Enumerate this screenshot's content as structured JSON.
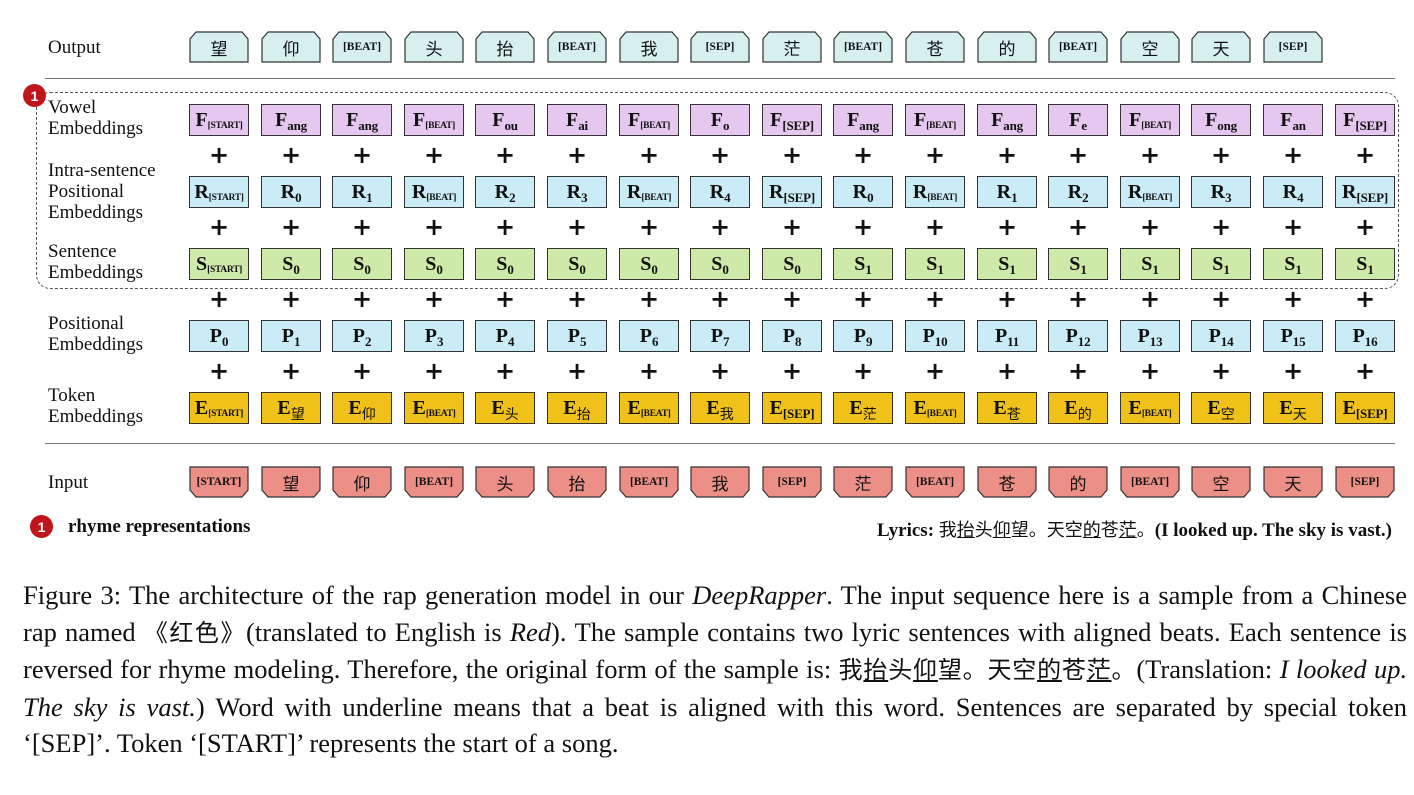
{
  "labels": {
    "output": "Output",
    "vowel_1": "Vowel",
    "vowel_2": "Embeddings",
    "intra_1": "Intra-sentence",
    "intra_2": "Positional",
    "intra_3": "Embeddings",
    "sentence_1": "Sentence",
    "sentence_2": "Embeddings",
    "positional_1": "Positional",
    "positional_2": "Embeddings",
    "token_1": "Token",
    "token_2": "Embeddings",
    "input": "Input"
  },
  "badge_number": "1",
  "legend_label": "rhyme representations",
  "plus_sign": "+",
  "output_tokens": [
    "望",
    "仰",
    "[BEAT]",
    "头",
    "抬",
    "[BEAT]",
    "我",
    "[SEP]",
    "茫",
    "[BEAT]",
    "苍",
    "的",
    "[BEAT]",
    "空",
    "天",
    "[SEP]"
  ],
  "input_tokens": [
    "[START]",
    "望",
    "仰",
    "[BEAT]",
    "头",
    "抬",
    "[BEAT]",
    "我",
    "[SEP]",
    "茫",
    "[BEAT]",
    "苍",
    "的",
    "[BEAT]",
    "空",
    "天",
    "[SEP]"
  ],
  "vowel_row": {
    "symbol": "F",
    "subs": [
      "[START]",
      "ang",
      "ang",
      "[BEAT]",
      "ou",
      "ai",
      "[BEAT]",
      "o",
      "[SEP]",
      "ang",
      "[BEAT]",
      "ang",
      "e",
      "[BEAT]",
      "ong",
      "an",
      "[SEP]"
    ]
  },
  "intra_row": {
    "symbol": "R",
    "subs": [
      "[START]",
      "0",
      "1",
      "[BEAT]",
      "2",
      "3",
      "[BEAT]",
      "4",
      "[SEP]",
      "0",
      "[BEAT]",
      "1",
      "2",
      "[BEAT]",
      "3",
      "4",
      "[SEP]"
    ]
  },
  "sentence_row": {
    "symbol": "S",
    "subs": [
      "[START]",
      "0",
      "0",
      "0",
      "0",
      "0",
      "0",
      "0",
      "0",
      "1",
      "1",
      "1",
      "1",
      "1",
      "1",
      "1",
      "1"
    ]
  },
  "positional_row": {
    "symbol": "P",
    "subs": [
      "0",
      "1",
      "2",
      "3",
      "4",
      "5",
      "6",
      "7",
      "8",
      "9",
      "10",
      "11",
      "12",
      "13",
      "14",
      "15",
      "16"
    ]
  },
  "token_row": {
    "symbol": "E",
    "subs": [
      "[START]",
      "望",
      "仰",
      "[BEAT]",
      "头",
      "抬",
      "[BEAT]",
      "我",
      "[SEP]",
      "茫",
      "[BEAT]",
      "苍",
      "的",
      "[BEAT]",
      "空",
      "天",
      "[SEP]"
    ]
  },
  "lyrics": {
    "prefix": "Lyrics: ",
    "parts": [
      {
        "text": "我",
        "u": false
      },
      {
        "text": "抬",
        "u": true
      },
      {
        "text": "头",
        "u": false
      },
      {
        "text": "仰",
        "u": true
      },
      {
        "text": "望。天空",
        "u": false
      },
      {
        "text": "的",
        "u": true
      },
      {
        "text": "苍",
        "u": false
      },
      {
        "text": "茫",
        "u": true
      },
      {
        "text": "。",
        "u": false
      }
    ],
    "translation": "(I looked up. The sky is vast.)"
  },
  "caption": {
    "p1": "Figure 3: The architecture of the rap generation model in our ",
    "p2": "DeepRapper",
    "p3": ". The input sequence here is a sample from a Chinese rap named ",
    "p4": "《红色》",
    "p5": "(translated to English is ",
    "p6": "Red",
    "p7": "). The sample contains two lyric sentences with aligned beats. Each sentence is reversed for rhyme modeling. Therefore, the original form of the sample is: ",
    "zh_parts": [
      {
        "text": "我",
        "u": false
      },
      {
        "text": "抬",
        "u": true
      },
      {
        "text": "头",
        "u": false
      },
      {
        "text": "仰",
        "u": true
      },
      {
        "text": "望。天空",
        "u": false
      },
      {
        "text": "的",
        "u": true
      },
      {
        "text": "苍",
        "u": false
      },
      {
        "text": "茫",
        "u": true
      },
      {
        "text": "。",
        "u": false
      }
    ],
    "p8": "(Translation: ",
    "p9": "I looked up. The sky is vast.",
    "p10": ") Word with underline means that a beat is aligned with this word. Sentences are separated by special token ‘[SEP]’. Token ‘[START]’ represents the start of a song."
  },
  "colors": {
    "vowel": "#e5c7ef",
    "intra": "#c9ecf6",
    "sentence": "#cfe9a9",
    "positional": "#c9ecf6",
    "token": "#f0c219",
    "output_pent": "#d7f0ef",
    "input_pent": "#ec8f86",
    "badge": "#c0161b"
  }
}
